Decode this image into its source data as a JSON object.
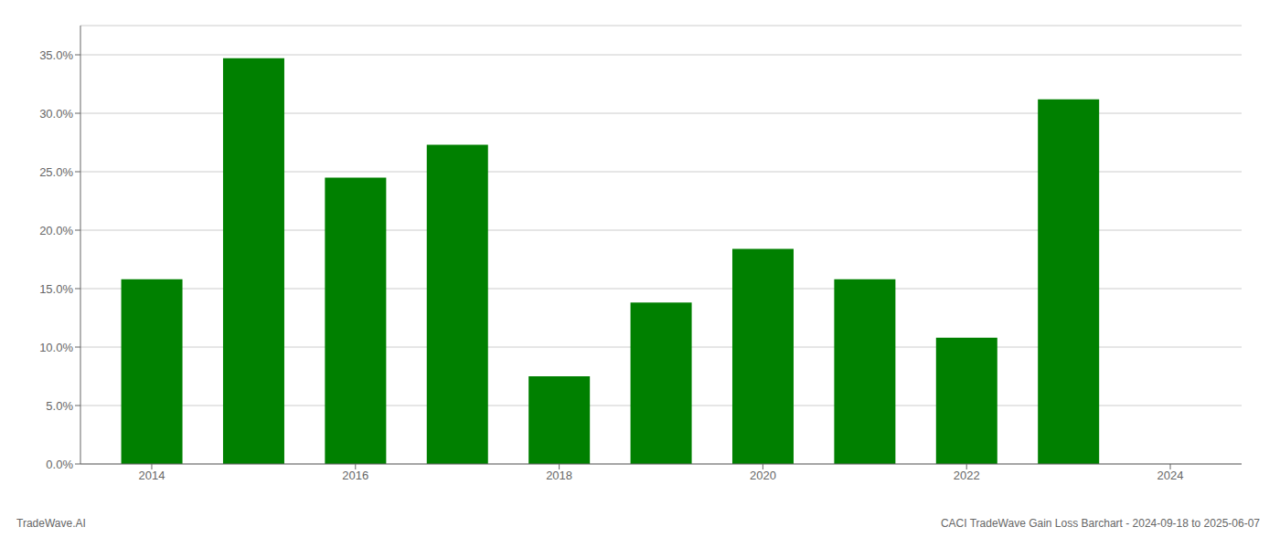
{
  "chart_data": {
    "type": "bar",
    "x": [
      2014,
      2015,
      2016,
      2017,
      2018,
      2019,
      2020,
      2021,
      2022,
      2023
    ],
    "values": [
      0.158,
      0.347,
      0.245,
      0.273,
      0.075,
      0.138,
      0.184,
      0.158,
      0.108,
      0.312
    ],
    "color": "#008000",
    "xlim": [
      2013.3,
      2024.7
    ],
    "xticks": [
      2014,
      2016,
      2018,
      2020,
      2022,
      2024
    ],
    "ylim": [
      0,
      0.375
    ],
    "yticks": [
      {
        "value": 0.0,
        "label": "0.0%"
      },
      {
        "value": 0.05,
        "label": "5.0%"
      },
      {
        "value": 0.1,
        "label": "10.0%"
      },
      {
        "value": 0.15,
        "label": "15.0%"
      },
      {
        "value": 0.2,
        "label": "20.0%"
      },
      {
        "value": 0.25,
        "label": "25.0%"
      },
      {
        "value": 0.3,
        "label": "30.0%"
      },
      {
        "value": 0.35,
        "label": "35.0%"
      }
    ],
    "grid": true,
    "annotations": [
      "TradeWave.AI",
      "CACI TradeWave Gain Loss Barchart - 2024-09-18 to 2025-06-07"
    ]
  }
}
